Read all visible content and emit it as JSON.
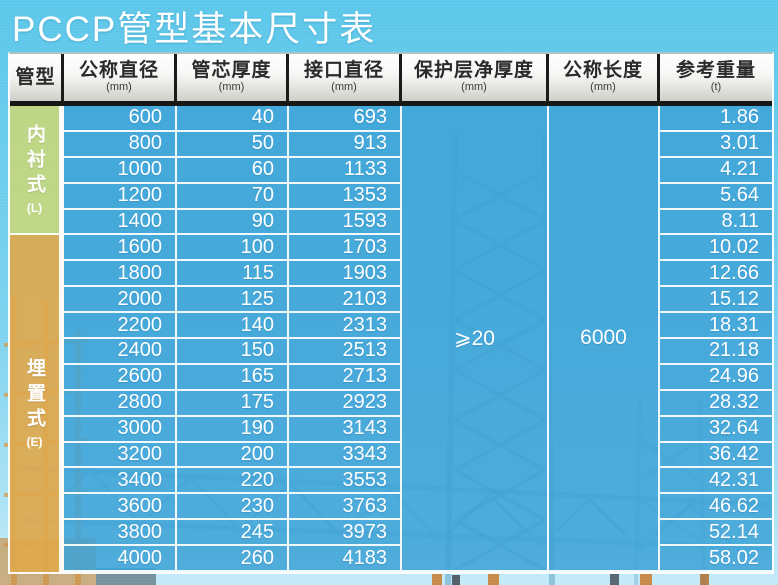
{
  "title": "PCCP管型基本尺寸表",
  "table": {
    "columns": [
      {
        "label": "管型",
        "unit": ""
      },
      {
        "label": "公称直径",
        "unit": "(mm)"
      },
      {
        "label": "管芯厚度",
        "unit": "(mm)"
      },
      {
        "label": "接口直径",
        "unit": "(mm)"
      },
      {
        "label": "保护层净厚度",
        "unit": "(mm)"
      },
      {
        "label": "公称长度",
        "unit": "(mm)"
      },
      {
        "label": "参考重量",
        "unit": "(t)"
      }
    ],
    "groups": [
      {
        "name": "内衬式",
        "code": "(L)",
        "row_span": 5
      },
      {
        "name": "埋置式",
        "code": "(E)",
        "row_span": 13
      }
    ],
    "merged": {
      "protective_layer_thickness": "⩾20",
      "nominal_length": "6000"
    },
    "rows": [
      {
        "nominal_diameter": "600",
        "core_thickness": "40",
        "joint_diameter": "693",
        "ref_weight": "1.86"
      },
      {
        "nominal_diameter": "800",
        "core_thickness": "50",
        "joint_diameter": "913",
        "ref_weight": "3.01"
      },
      {
        "nominal_diameter": "1000",
        "core_thickness": "60",
        "joint_diameter": "1133",
        "ref_weight": "4.21"
      },
      {
        "nominal_diameter": "1200",
        "core_thickness": "70",
        "joint_diameter": "1353",
        "ref_weight": "5.64"
      },
      {
        "nominal_diameter": "1400",
        "core_thickness": "90",
        "joint_diameter": "1593",
        "ref_weight": "8.11"
      },
      {
        "nominal_diameter": "1600",
        "core_thickness": "100",
        "joint_diameter": "1703",
        "ref_weight": "10.02"
      },
      {
        "nominal_diameter": "1800",
        "core_thickness": "115",
        "joint_diameter": "1903",
        "ref_weight": "12.66"
      },
      {
        "nominal_diameter": "2000",
        "core_thickness": "125",
        "joint_diameter": "2103",
        "ref_weight": "15.12"
      },
      {
        "nominal_diameter": "2200",
        "core_thickness": "140",
        "joint_diameter": "2313",
        "ref_weight": "18.31"
      },
      {
        "nominal_diameter": "2400",
        "core_thickness": "150",
        "joint_diameter": "2513",
        "ref_weight": "21.18"
      },
      {
        "nominal_diameter": "2600",
        "core_thickness": "165",
        "joint_diameter": "2713",
        "ref_weight": "24.96"
      },
      {
        "nominal_diameter": "2800",
        "core_thickness": "175",
        "joint_diameter": "2923",
        "ref_weight": "28.32"
      },
      {
        "nominal_diameter": "3000",
        "core_thickness": "190",
        "joint_diameter": "3143",
        "ref_weight": "32.64"
      },
      {
        "nominal_diameter": "3200",
        "core_thickness": "200",
        "joint_diameter": "3343",
        "ref_weight": "36.42"
      },
      {
        "nominal_diameter": "3400",
        "core_thickness": "220",
        "joint_diameter": "3553",
        "ref_weight": "42.31"
      },
      {
        "nominal_diameter": "3600",
        "core_thickness": "230",
        "joint_diameter": "3763",
        "ref_weight": "46.62"
      },
      {
        "nominal_diameter": "3800",
        "core_thickness": "245",
        "joint_diameter": "3973",
        "ref_weight": "52.14"
      },
      {
        "nominal_diameter": "4000",
        "core_thickness": "260",
        "joint_diameter": "4183",
        "ref_weight": "58.02"
      }
    ]
  },
  "colors": {
    "background_blue": "#5ec9ec",
    "cell_blue": "#3ea3d7",
    "lined_green": "#c4d880",
    "embedded_orange": "#dea84d",
    "header_dark_band": "#171717",
    "grid_white": "#ffffff"
  }
}
